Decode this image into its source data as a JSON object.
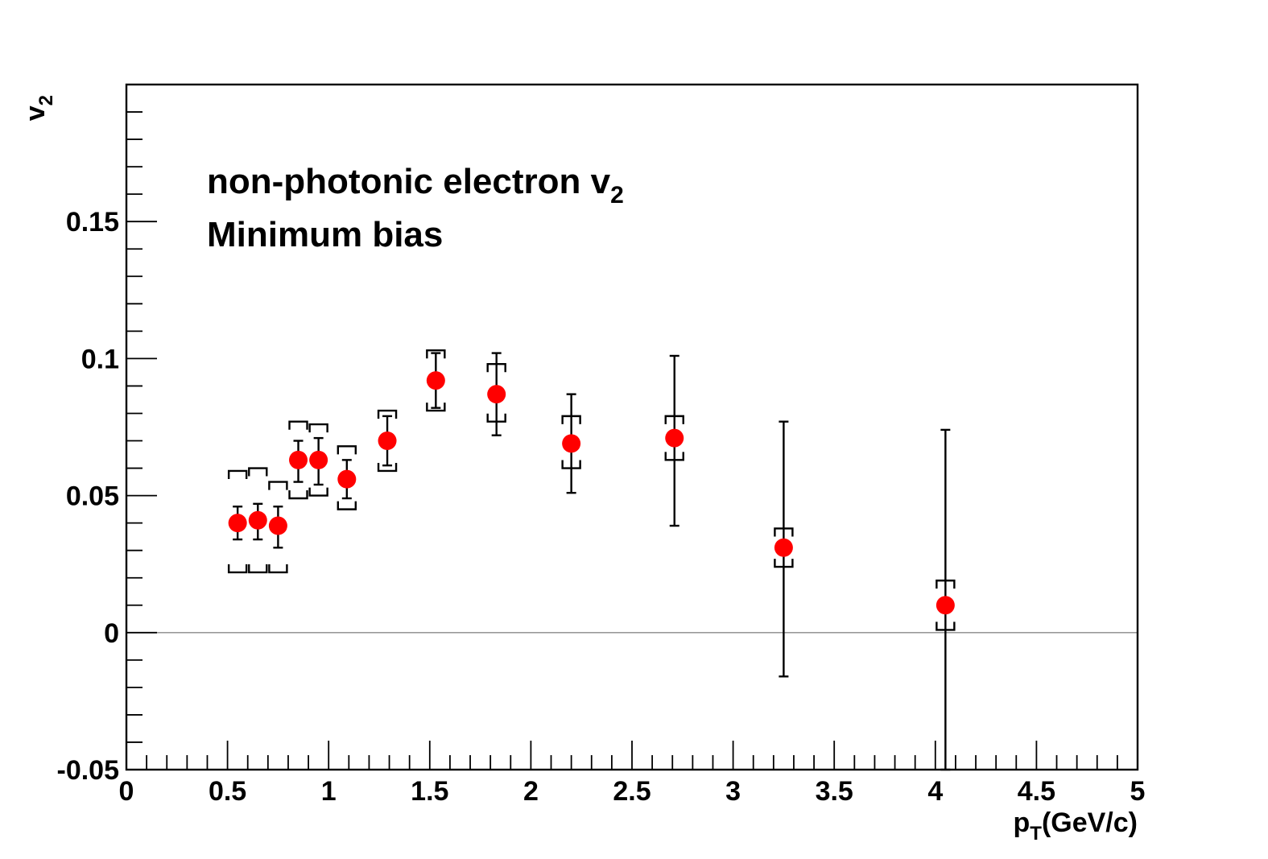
{
  "chart_data": {
    "type": "scatter",
    "xlabel": {
      "main": "p",
      "sub": "T",
      "rest": "(GeV/c)"
    },
    "ylabel": {
      "main": "v",
      "sub": "2"
    },
    "annotations": [
      {
        "main": "non-photonic electron v",
        "sub": "2"
      },
      {
        "main": "Minimum bias",
        "sub": ""
      }
    ],
    "xlim": [
      0,
      5
    ],
    "ylim": [
      -0.05,
      0.2
    ],
    "x_ticks": [
      "0",
      "0.5",
      "1",
      "1.5",
      "2",
      "2.5",
      "3",
      "3.5",
      "4",
      "4.5",
      "5"
    ],
    "y_ticks": [
      "-0.05",
      "0",
      "0.05",
      "0.1",
      "0.15"
    ],
    "grid": false,
    "zero_line": true,
    "colors": {
      "marker": "#ff0000",
      "error": "#000000",
      "zero_line": "#888888"
    },
    "points": [
      {
        "x": 0.55,
        "y": 0.04,
        "stat": [
          0.034,
          0.046
        ],
        "sys": [
          0.022,
          0.059
        ]
      },
      {
        "x": 0.65,
        "y": 0.041,
        "stat": [
          0.034,
          0.047
        ],
        "sys": [
          0.022,
          0.06
        ]
      },
      {
        "x": 0.75,
        "y": 0.039,
        "stat": [
          0.031,
          0.046
        ],
        "sys": [
          0.022,
          0.055
        ]
      },
      {
        "x": 0.85,
        "y": 0.063,
        "stat": [
          0.055,
          0.07
        ],
        "sys": [
          0.049,
          0.077
        ]
      },
      {
        "x": 0.95,
        "y": 0.063,
        "stat": [
          0.054,
          0.071
        ],
        "sys": [
          0.05,
          0.076
        ]
      },
      {
        "x": 1.09,
        "y": 0.056,
        "stat": [
          0.049,
          0.063
        ],
        "sys": [
          0.045,
          0.068
        ]
      },
      {
        "x": 1.29,
        "y": 0.07,
        "stat": [
          0.061,
          0.079
        ],
        "sys": [
          0.059,
          0.081
        ]
      },
      {
        "x": 1.53,
        "y": 0.092,
        "stat": [
          0.082,
          0.102
        ],
        "sys": [
          0.081,
          0.103
        ]
      },
      {
        "x": 1.83,
        "y": 0.087,
        "stat": [
          0.072,
          0.102
        ],
        "sys": [
          0.077,
          0.098
        ]
      },
      {
        "x": 2.2,
        "y": 0.069,
        "stat": [
          0.051,
          0.087
        ],
        "sys": [
          0.06,
          0.079
        ]
      },
      {
        "x": 2.71,
        "y": 0.071,
        "stat": [
          0.039,
          0.101
        ],
        "sys": [
          0.063,
          0.079
        ]
      },
      {
        "x": 3.25,
        "y": 0.031,
        "stat": [
          -0.016,
          0.077
        ],
        "sys": [
          0.024,
          0.038
        ]
      },
      {
        "x": 4.05,
        "y": 0.01,
        "stat": [
          -0.05,
          0.074
        ],
        "sys": [
          0.001,
          0.019
        ]
      }
    ]
  }
}
